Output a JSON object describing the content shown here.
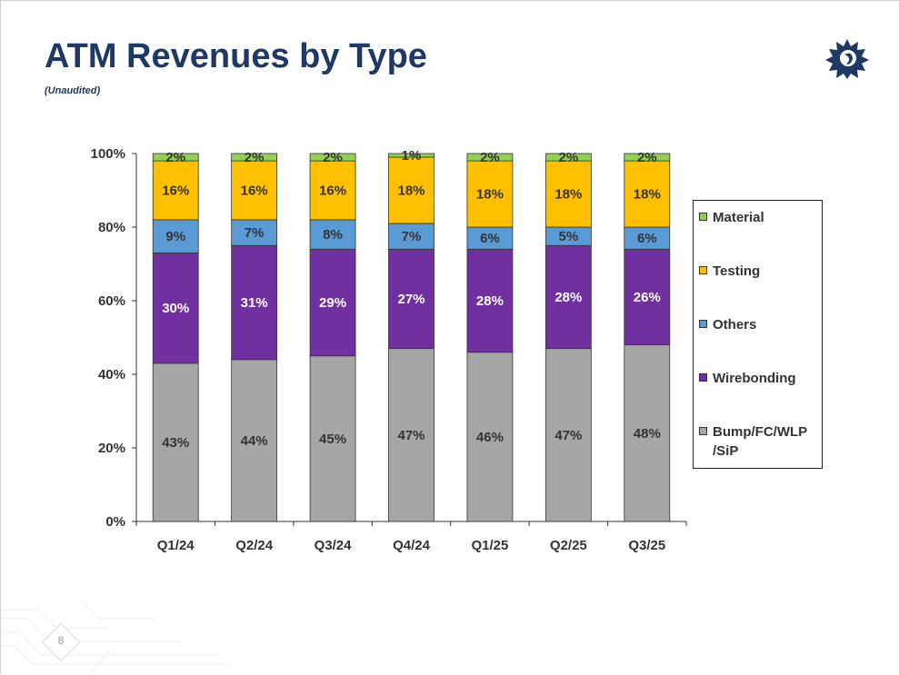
{
  "header": {
    "title": "ATM Revenues by Type",
    "subtitle": "(Unaudited)"
  },
  "footer": {
    "page_number": "8"
  },
  "logo": {
    "icon": "company-logo-icon",
    "color": "#1f3864"
  },
  "chart_data": {
    "type": "bar",
    "stacked": true,
    "categories": [
      "Q1/24",
      "Q2/24",
      "Q3/24",
      "Q4/24",
      "Q1/25",
      "Q2/25",
      "Q3/25"
    ],
    "series": [
      {
        "name": "Bump/FC/WLP /SiP",
        "color": "#a6a6a6",
        "values": [
          43,
          44,
          45,
          47,
          46,
          47,
          48
        ]
      },
      {
        "name": "Wirebonding",
        "color": "#7030a0",
        "values": [
          30,
          31,
          29,
          27,
          28,
          28,
          26
        ]
      },
      {
        "name": "Others",
        "color": "#5b9bd5",
        "values": [
          9,
          7,
          8,
          7,
          6,
          5,
          6
        ]
      },
      {
        "name": "Testing",
        "color": "#ffc000",
        "values": [
          16,
          16,
          16,
          18,
          18,
          18,
          18
        ]
      },
      {
        "name": "Material",
        "color": "#92d050",
        "values": [
          2,
          2,
          2,
          1,
          2,
          2,
          2
        ]
      }
    ],
    "data_labels": [
      [
        "43%",
        "44%",
        "45%",
        "47%",
        "46%",
        "47%",
        "48%"
      ],
      [
        "30%",
        "31%",
        "29%",
        "27%",
        "28%",
        "28%",
        "26%"
      ],
      [
        "9%",
        "7%",
        "8%",
        "7%",
        "6%",
        "5%",
        "6%"
      ],
      [
        "16%",
        "16%",
        "16%",
        "18%",
        "18%",
        "18%",
        "18%"
      ],
      [
        "2%",
        "2%",
        "2%",
        "1%",
        "2%",
        "2%",
        "2%"
      ]
    ],
    "y_ticks": [
      "0%",
      "20%",
      "40%",
      "60%",
      "80%",
      "100%"
    ],
    "ylim": [
      0,
      100
    ],
    "grid": false,
    "legend_position": "right",
    "legend": [
      "Material",
      "Testing",
      "Others",
      "Wirebonding",
      "Bump/FC/WLP /SiP"
    ]
  }
}
